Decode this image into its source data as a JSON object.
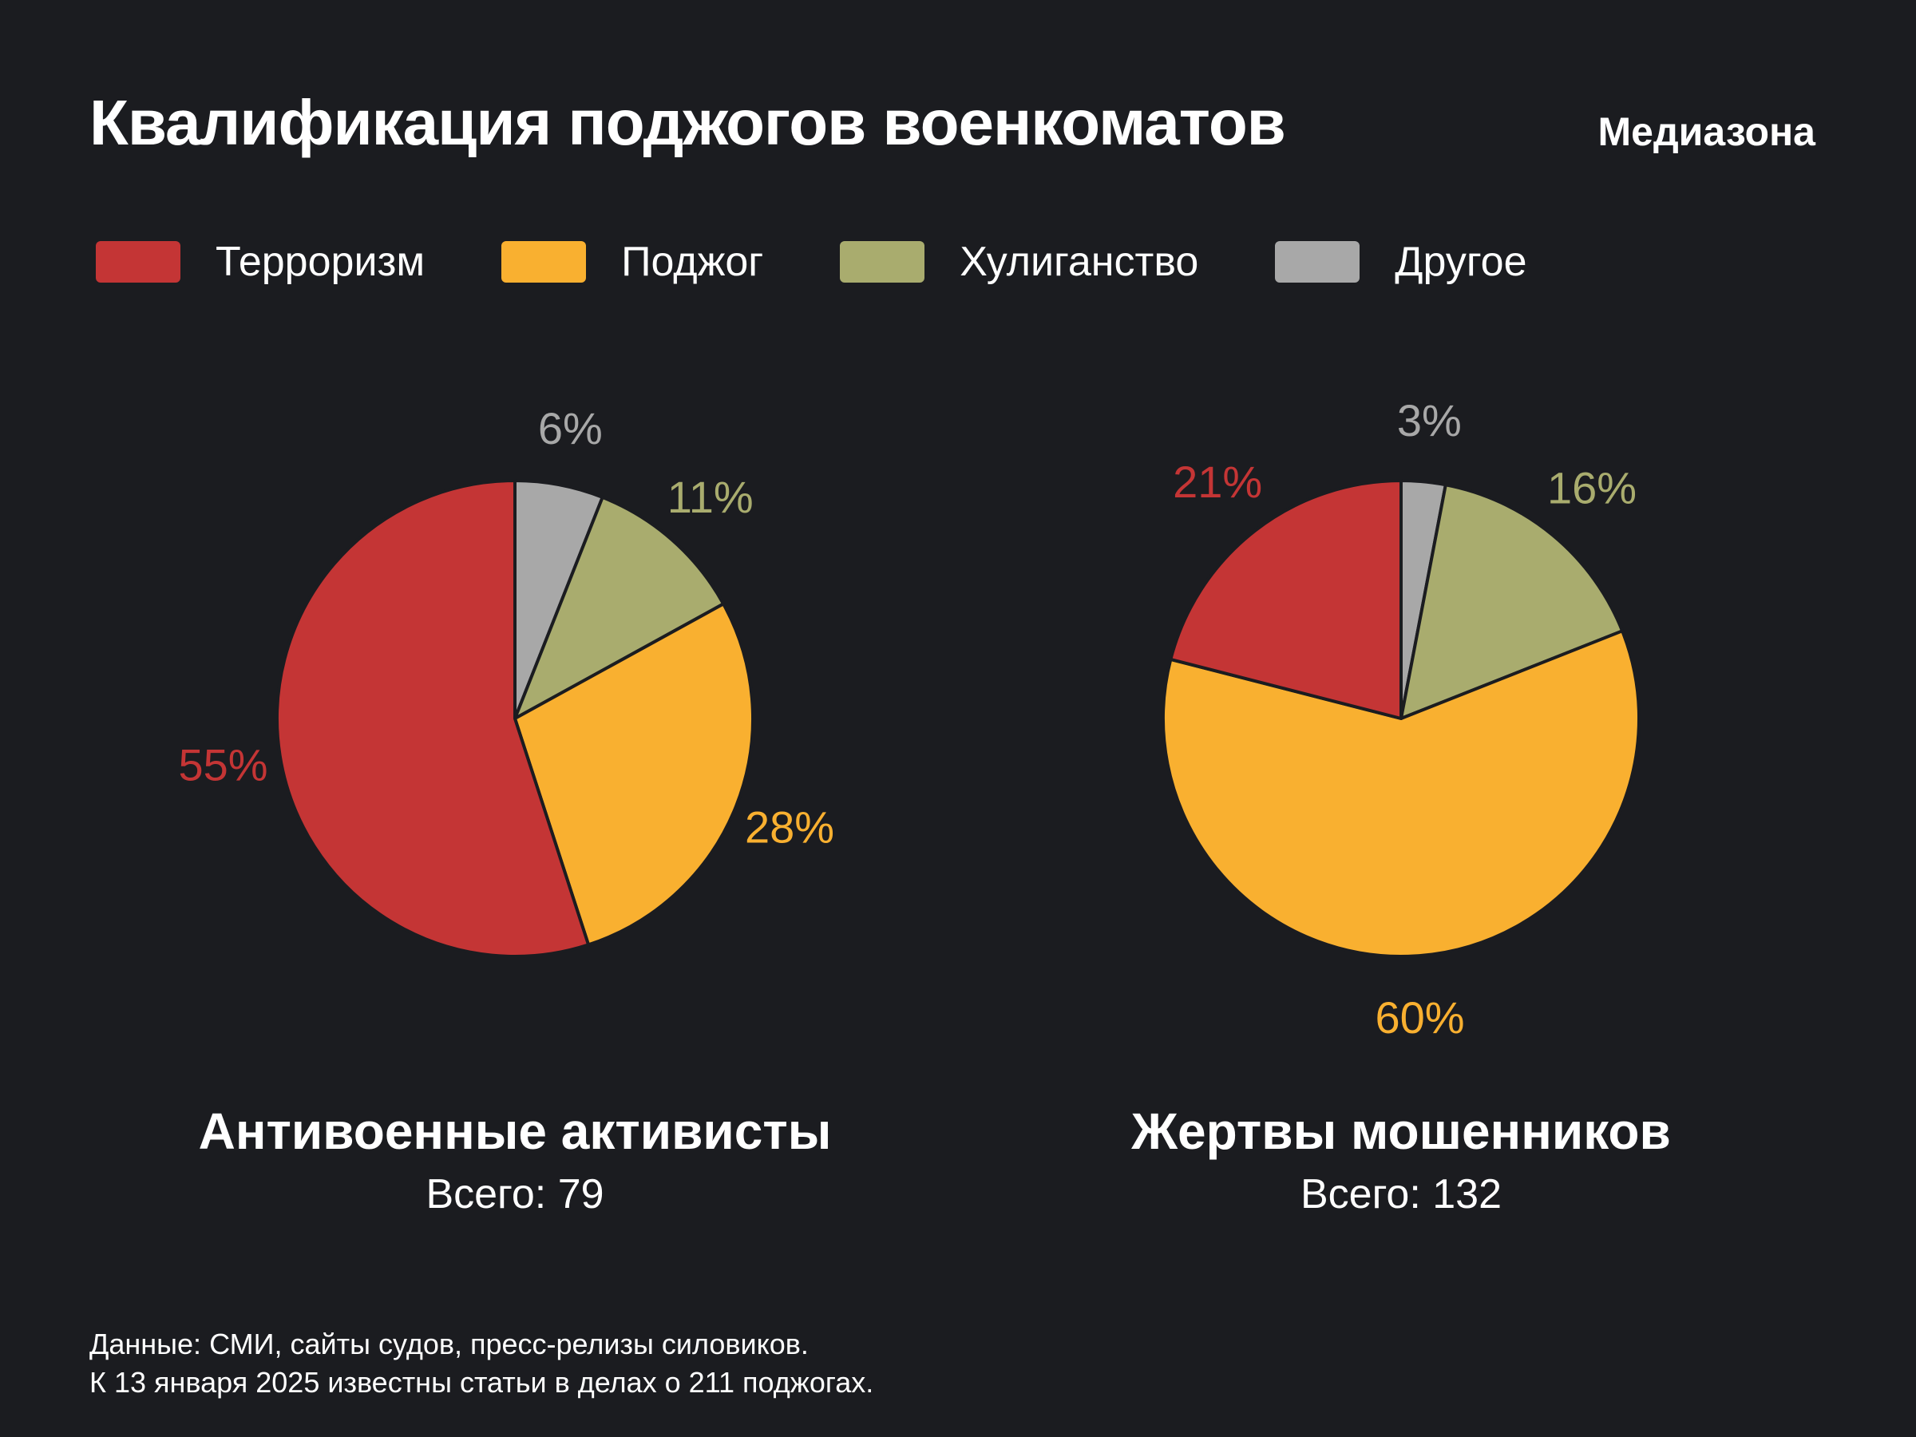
{
  "title": "Квалификация поджогов военкоматов",
  "brand": "Медиазона",
  "colors": {
    "background": "#1b1c20",
    "terrorism": "#c43535",
    "arson": "#f9b030",
    "hooliganism": "#a9ac6e",
    "other": "#a8a8a8"
  },
  "legend": [
    {
      "label": "Терроризм",
      "color": "#c43535"
    },
    {
      "label": "Поджог",
      "color": "#f9b030"
    },
    {
      "label": "Хулиганство",
      "color": "#a9ac6e"
    },
    {
      "label": "Другое",
      "color": "#a8a8a8"
    }
  ],
  "chart_data": [
    {
      "type": "pie",
      "title": "Антивоенные активисты",
      "total_label": "Всего:",
      "total": 79,
      "slices": [
        {
          "label": "Другое",
          "value": 6,
          "display": "6%",
          "color": "#a8a8a8"
        },
        {
          "label": "Хулиганство",
          "value": 11,
          "display": "11%",
          "color": "#a9ac6e"
        },
        {
          "label": "Поджог",
          "value": 28,
          "display": "28%",
          "color": "#f9b030"
        },
        {
          "label": "Терроризм",
          "value": 55,
          "display": "55%",
          "color": "#c43535"
        }
      ]
    },
    {
      "type": "pie",
      "title": "Жертвы мошенников",
      "total_label": "Всего:",
      "total": 132,
      "slices": [
        {
          "label": "Другое",
          "value": 3,
          "display": "3%",
          "color": "#a8a8a8"
        },
        {
          "label": "Хулиганство",
          "value": 16,
          "display": "16%",
          "color": "#a9ac6e"
        },
        {
          "label": "Поджог",
          "value": 60,
          "display": "60%",
          "color": "#f9b030"
        },
        {
          "label": "Терроризм",
          "value": 21,
          "display": "21%",
          "color": "#c43535"
        }
      ]
    }
  ],
  "source": {
    "line1": "Данные: СМИ, сайты судов, пресс-релизы силовиков.",
    "line2": "К 13 января 2025 известны статьи в делах о 211 поджогах."
  }
}
